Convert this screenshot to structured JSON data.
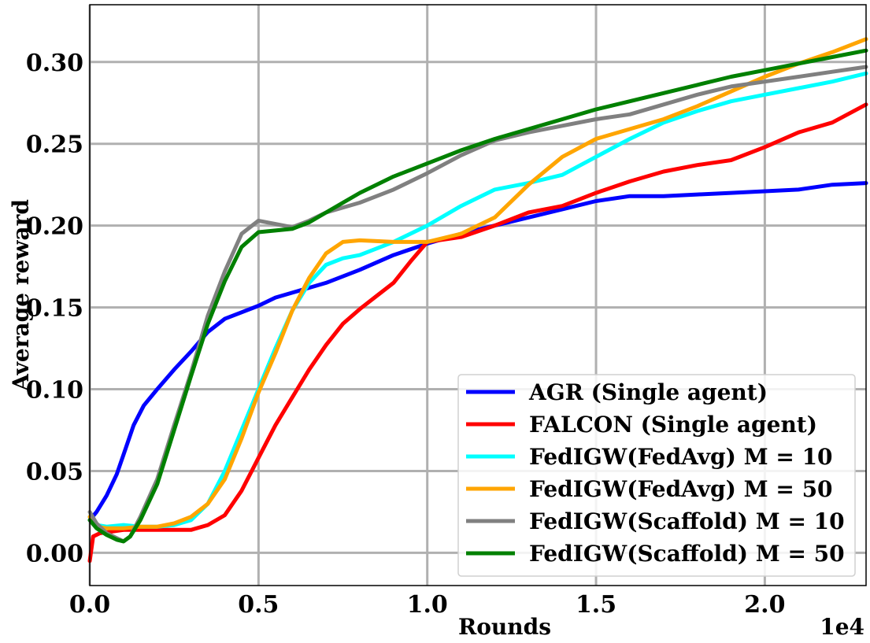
{
  "chart_data": {
    "type": "line",
    "title": "",
    "xlabel": "Rounds",
    "ylabel": "Average reward",
    "x_offset_label": "1e4",
    "xlim": [
      0,
      2.3
    ],
    "ylim": [
      -0.02,
      0.335
    ],
    "xticks": [
      "0.0",
      "0.5",
      "1.0",
      "1.5",
      "2.0"
    ],
    "yticks": [
      "0.00",
      "0.05",
      "0.10",
      "0.15",
      "0.20",
      "0.25",
      "0.30"
    ],
    "grid": true,
    "legend_position": "lower-right",
    "series": [
      {
        "name": "AGR (Single agent)",
        "color": "#0000ff",
        "x": [
          0,
          0.02,
          0.05,
          0.08,
          0.1,
          0.13,
          0.16,
          0.2,
          0.25,
          0.3,
          0.35,
          0.4,
          0.45,
          0.5,
          0.55,
          0.6,
          0.7,
          0.8,
          0.9,
          1.0,
          1.1,
          1.2,
          1.3,
          1.4,
          1.5,
          1.6,
          1.7,
          1.8,
          1.9,
          2.0,
          2.1,
          2.2,
          2.3
        ],
        "y": [
          0.02,
          0.025,
          0.035,
          0.048,
          0.06,
          0.078,
          0.09,
          0.1,
          0.112,
          0.123,
          0.135,
          0.143,
          0.147,
          0.151,
          0.156,
          0.159,
          0.165,
          0.173,
          0.182,
          0.189,
          0.195,
          0.2,
          0.205,
          0.21,
          0.215,
          0.218,
          0.218,
          0.219,
          0.22,
          0.221,
          0.222,
          0.225,
          0.226
        ]
      },
      {
        "name": "FALCON (Single agent)",
        "color": "#ff0000",
        "x": [
          0,
          0.01,
          0.03,
          0.1,
          0.2,
          0.3,
          0.35,
          0.4,
          0.45,
          0.5,
          0.55,
          0.6,
          0.65,
          0.7,
          0.75,
          0.8,
          0.85,
          0.9,
          0.95,
          1.0,
          1.1,
          1.2,
          1.3,
          1.4,
          1.5,
          1.6,
          1.7,
          1.8,
          1.9,
          2.0,
          2.1,
          2.2,
          2.3
        ],
        "y": [
          -0.005,
          0.01,
          0.012,
          0.014,
          0.014,
          0.014,
          0.017,
          0.023,
          0.038,
          0.058,
          0.078,
          0.095,
          0.112,
          0.127,
          0.14,
          0.149,
          0.157,
          0.165,
          0.178,
          0.19,
          0.193,
          0.2,
          0.208,
          0.212,
          0.22,
          0.227,
          0.233,
          0.237,
          0.24,
          0.248,
          0.257,
          0.263,
          0.274
        ]
      },
      {
        "name": "FedIGW(FedAvg) M = 10",
        "color": "#00ffff",
        "x": [
          0,
          0.02,
          0.05,
          0.1,
          0.15,
          0.2,
          0.25,
          0.3,
          0.35,
          0.4,
          0.45,
          0.5,
          0.55,
          0.6,
          0.65,
          0.7,
          0.75,
          0.8,
          0.9,
          1.0,
          1.1,
          1.2,
          1.3,
          1.4,
          1.5,
          1.6,
          1.7,
          1.8,
          1.9,
          2.0,
          2.1,
          2.2,
          2.3
        ],
        "y": [
          0.022,
          0.017,
          0.016,
          0.017,
          0.016,
          0.016,
          0.017,
          0.02,
          0.03,
          0.05,
          0.075,
          0.1,
          0.125,
          0.148,
          0.165,
          0.176,
          0.18,
          0.182,
          0.19,
          0.2,
          0.212,
          0.222,
          0.226,
          0.231,
          0.242,
          0.253,
          0.263,
          0.27,
          0.276,
          0.28,
          0.284,
          0.288,
          0.293
        ]
      },
      {
        "name": "FedIGW(FedAvg) M = 50",
        "color": "#ffa500",
        "x": [
          0,
          0.02,
          0.05,
          0.1,
          0.15,
          0.2,
          0.25,
          0.3,
          0.35,
          0.4,
          0.45,
          0.5,
          0.55,
          0.6,
          0.65,
          0.7,
          0.75,
          0.8,
          0.9,
          1.0,
          1.1,
          1.2,
          1.3,
          1.4,
          1.5,
          1.6,
          1.7,
          1.8,
          1.9,
          2.0,
          2.1,
          2.2,
          2.3
        ],
        "y": [
          0.022,
          0.016,
          0.015,
          0.015,
          0.016,
          0.016,
          0.018,
          0.022,
          0.03,
          0.045,
          0.07,
          0.098,
          0.122,
          0.148,
          0.168,
          0.183,
          0.19,
          0.191,
          0.19,
          0.19,
          0.195,
          0.205,
          0.225,
          0.242,
          0.253,
          0.259,
          0.265,
          0.273,
          0.282,
          0.291,
          0.299,
          0.306,
          0.314
        ]
      },
      {
        "name": "FedIGW(Scaffold) M = 10",
        "color": "#808080",
        "x": [
          0,
          0.02,
          0.05,
          0.08,
          0.1,
          0.12,
          0.15,
          0.2,
          0.25,
          0.3,
          0.35,
          0.4,
          0.45,
          0.5,
          0.55,
          0.6,
          0.65,
          0.7,
          0.8,
          0.9,
          1.0,
          1.1,
          1.2,
          1.3,
          1.4,
          1.5,
          1.6,
          1.7,
          1.8,
          1.9,
          2.0,
          2.1,
          2.2,
          2.3
        ],
        "y": [
          0.025,
          0.018,
          0.012,
          0.009,
          0.007,
          0.01,
          0.022,
          0.045,
          0.078,
          0.11,
          0.145,
          0.172,
          0.195,
          0.203,
          0.201,
          0.199,
          0.203,
          0.208,
          0.214,
          0.222,
          0.232,
          0.243,
          0.252,
          0.257,
          0.261,
          0.265,
          0.268,
          0.274,
          0.28,
          0.285,
          0.288,
          0.291,
          0.294,
          0.297
        ]
      },
      {
        "name": "FedIGW(Scaffold) M = 50",
        "color": "#008000",
        "x": [
          0,
          0.02,
          0.05,
          0.08,
          0.1,
          0.12,
          0.15,
          0.2,
          0.25,
          0.3,
          0.35,
          0.4,
          0.45,
          0.5,
          0.55,
          0.6,
          0.65,
          0.7,
          0.8,
          0.9,
          1.0,
          1.1,
          1.2,
          1.3,
          1.4,
          1.5,
          1.6,
          1.7,
          1.8,
          1.9,
          2.0,
          2.1,
          2.2,
          2.3
        ],
        "y": [
          0.02,
          0.015,
          0.011,
          0.008,
          0.007,
          0.01,
          0.02,
          0.042,
          0.075,
          0.108,
          0.14,
          0.166,
          0.187,
          0.196,
          0.197,
          0.198,
          0.202,
          0.208,
          0.22,
          0.23,
          0.238,
          0.246,
          0.253,
          0.259,
          0.265,
          0.271,
          0.276,
          0.281,
          0.286,
          0.291,
          0.295,
          0.299,
          0.303,
          0.307
        ]
      }
    ]
  }
}
